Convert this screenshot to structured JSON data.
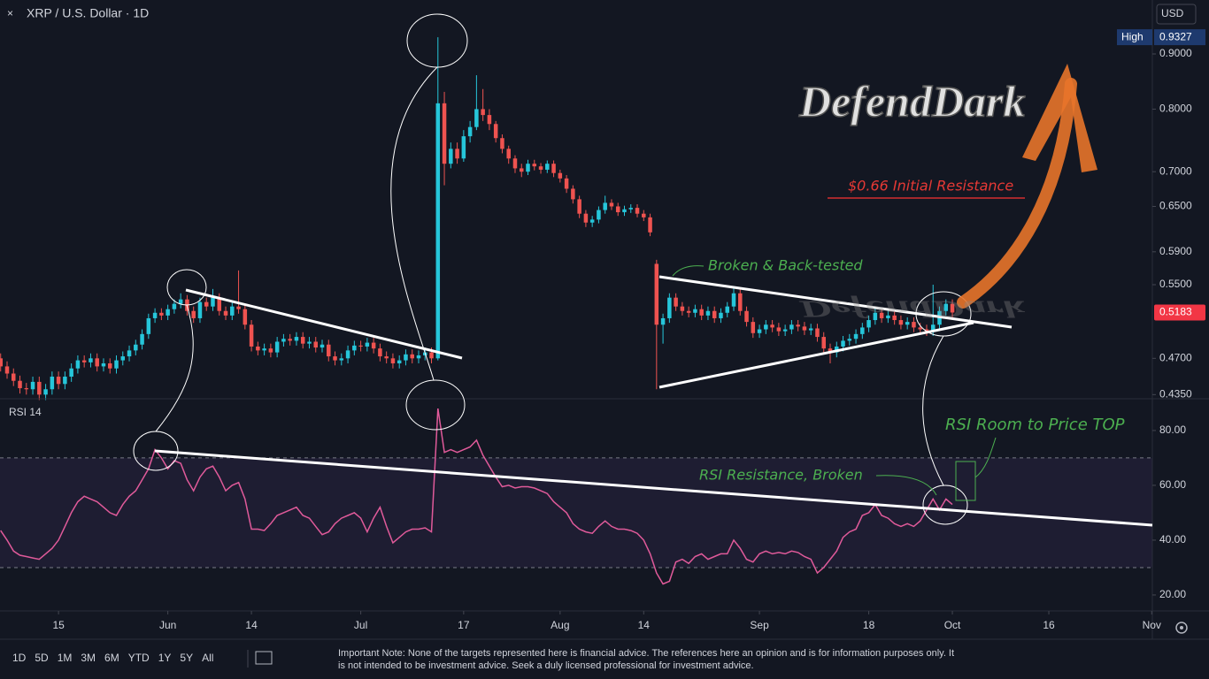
{
  "chart_data": [
    {
      "type": "candlestick",
      "title": "XRP / U.S. Dollar · 1D",
      "currency": "USD",
      "high_label": "High",
      "log_scale": true,
      "up_color": "#26c6da",
      "down_color": "#ef5350",
      "last_color": "#f23645",
      "xlim": [
        -0.1,
        179.1
      ],
      "ylim": [
        0.432,
        1.0098
      ],
      "yticks": [
        {
          "value": 0.9,
          "label": "0.9000"
        },
        {
          "value": 0.8,
          "label": "0.8000"
        },
        {
          "value": 0.7,
          "label": "0.7000"
        },
        {
          "value": 0.65,
          "label": "0.6500"
        },
        {
          "value": 0.59,
          "label": "0.5900"
        },
        {
          "value": 0.55,
          "label": "0.5500"
        },
        {
          "value": 0.47,
          "label": "0.4700"
        },
        {
          "value": 0.435,
          "label": "0.4350"
        }
      ],
      "annotations": [
        "DefendDark",
        "$0.66 Initial Resistance",
        "Broken & Back-tested",
        "RSI Room to Price TOP",
        "RSI Resistance, Broken"
      ],
      "open": [
        0.47,
        0.462,
        0.455,
        0.448,
        0.441,
        0.44,
        0.447,
        0.435,
        0.44,
        0.452,
        0.445,
        0.452,
        0.46,
        0.468,
        0.466,
        0.47,
        0.462,
        0.465,
        0.46,
        0.468,
        0.472,
        0.478,
        0.484,
        0.495,
        0.512,
        0.518,
        0.515,
        0.522,
        0.528,
        0.533,
        0.52,
        0.512,
        0.53,
        0.525,
        0.535,
        0.52,
        0.515,
        0.525,
        0.522,
        0.505,
        0.482,
        0.478,
        0.48,
        0.476,
        0.487,
        0.49,
        0.488,
        0.492,
        0.485,
        0.487,
        0.481,
        0.484,
        0.472,
        0.468,
        0.47,
        0.478,
        0.483,
        0.482,
        0.486,
        0.48,
        0.472,
        0.47,
        0.465,
        0.468,
        0.474,
        0.47,
        0.473,
        0.476,
        0.47,
        0.81,
        0.712,
        0.735,
        0.72,
        0.755,
        0.77,
        0.8,
        0.79,
        0.775,
        0.752,
        0.735,
        0.72,
        0.705,
        0.7,
        0.712,
        0.708,
        0.703,
        0.712,
        0.698,
        0.69,
        0.675,
        0.66,
        0.64,
        0.628,
        0.632,
        0.645,
        0.655,
        0.65,
        0.642,
        0.646,
        0.648,
        0.64,
        0.635,
        0.575,
        0.505,
        0.512,
        0.535,
        0.525,
        0.52,
        0.518,
        0.522,
        0.515,
        0.52,
        0.512,
        0.518,
        0.525,
        0.54,
        0.52,
        0.508,
        0.496,
        0.5,
        0.505,
        0.502,
        0.498,
        0.5,
        0.505,
        0.503,
        0.499,
        0.501,
        0.492,
        0.48,
        0.476,
        0.482,
        0.488,
        0.49,
        0.495,
        0.502,
        0.51,
        0.518,
        0.512,
        0.515,
        0.51,
        0.505,
        0.508,
        0.502,
        0.5,
        0.498,
        0.505,
        0.52,
        0.528
      ],
      "high": [
        0.475,
        0.467,
        0.46,
        0.453,
        0.446,
        0.452,
        0.452,
        0.445,
        0.457,
        0.457,
        0.457,
        0.465,
        0.473,
        0.473,
        0.475,
        0.475,
        0.47,
        0.47,
        0.473,
        0.477,
        0.483,
        0.489,
        0.5,
        0.517,
        0.523,
        0.523,
        0.527,
        0.533,
        0.54,
        0.538,
        0.525,
        0.535,
        0.535,
        0.545,
        0.54,
        0.525,
        0.53,
        0.567,
        0.527,
        0.51,
        0.487,
        0.485,
        0.485,
        0.492,
        0.495,
        0.495,
        0.497,
        0.497,
        0.492,
        0.492,
        0.489,
        0.489,
        0.477,
        0.475,
        0.483,
        0.488,
        0.488,
        0.491,
        0.491,
        0.485,
        0.477,
        0.475,
        0.473,
        0.479,
        0.479,
        0.478,
        0.481,
        0.481,
        0.9327,
        0.83,
        0.745,
        0.745,
        0.765,
        0.78,
        0.86,
        0.835,
        0.8,
        0.78,
        0.758,
        0.74,
        0.725,
        0.712,
        0.718,
        0.718,
        0.713,
        0.717,
        0.717,
        0.703,
        0.695,
        0.68,
        0.665,
        0.645,
        0.637,
        0.65,
        0.665,
        0.66,
        0.655,
        0.651,
        0.653,
        0.653,
        0.645,
        0.64,
        0.58,
        0.517,
        0.54,
        0.54,
        0.53,
        0.525,
        0.527,
        0.527,
        0.525,
        0.525,
        0.523,
        0.53,
        0.547,
        0.545,
        0.525,
        0.513,
        0.505,
        0.51,
        0.51,
        0.507,
        0.505,
        0.51,
        0.51,
        0.508,
        0.506,
        0.506,
        0.497,
        0.485,
        0.487,
        0.493,
        0.495,
        0.5,
        0.507,
        0.515,
        0.523,
        0.523,
        0.52,
        0.52,
        0.515,
        0.513,
        0.513,
        0.507,
        0.505,
        0.55,
        0.525,
        0.533,
        0.533
      ],
      "low": [
        0.457,
        0.45,
        0.443,
        0.436,
        0.435,
        0.435,
        0.43,
        0.43,
        0.435,
        0.44,
        0.44,
        0.447,
        0.455,
        0.461,
        0.461,
        0.457,
        0.457,
        0.455,
        0.455,
        0.463,
        0.467,
        0.473,
        0.479,
        0.49,
        0.507,
        0.51,
        0.51,
        0.517,
        0.523,
        0.515,
        0.507,
        0.507,
        0.52,
        0.52,
        0.515,
        0.51,
        0.51,
        0.517,
        0.5,
        0.477,
        0.473,
        0.473,
        0.471,
        0.471,
        0.482,
        0.483,
        0.483,
        0.48,
        0.48,
        0.476,
        0.476,
        0.467,
        0.463,
        0.463,
        0.465,
        0.473,
        0.477,
        0.477,
        0.475,
        0.467,
        0.465,
        0.46,
        0.46,
        0.463,
        0.465,
        0.465,
        0.468,
        0.465,
        0.468,
        0.68,
        0.705,
        0.712,
        0.715,
        0.745,
        0.765,
        0.78,
        0.765,
        0.745,
        0.728,
        0.712,
        0.698,
        0.692,
        0.695,
        0.702,
        0.697,
        0.698,
        0.692,
        0.684,
        0.669,
        0.654,
        0.634,
        0.622,
        0.622,
        0.627,
        0.64,
        0.645,
        0.637,
        0.637,
        0.641,
        0.635,
        0.63,
        0.61,
        0.44,
        0.485,
        0.507,
        0.52,
        0.515,
        0.513,
        0.513,
        0.51,
        0.51,
        0.507,
        0.507,
        0.513,
        0.52,
        0.515,
        0.503,
        0.491,
        0.491,
        0.495,
        0.497,
        0.493,
        0.493,
        0.495,
        0.498,
        0.494,
        0.494,
        0.487,
        0.475,
        0.465,
        0.471,
        0.477,
        0.483,
        0.485,
        0.49,
        0.497,
        0.505,
        0.507,
        0.507,
        0.505,
        0.5,
        0.5,
        0.497,
        0.495,
        0.493,
        0.493,
        0.5,
        0.515,
        0.513
      ],
      "close": [
        0.462,
        0.455,
        0.448,
        0.441,
        0.44,
        0.447,
        0.435,
        0.44,
        0.452,
        0.445,
        0.452,
        0.46,
        0.468,
        0.466,
        0.47,
        0.462,
        0.465,
        0.46,
        0.468,
        0.472,
        0.478,
        0.484,
        0.495,
        0.512,
        0.518,
        0.515,
        0.522,
        0.528,
        0.533,
        0.52,
        0.512,
        0.53,
        0.525,
        0.535,
        0.52,
        0.515,
        0.525,
        0.522,
        0.505,
        0.482,
        0.478,
        0.48,
        0.476,
        0.487,
        0.49,
        0.488,
        0.492,
        0.485,
        0.487,
        0.481,
        0.484,
        0.472,
        0.468,
        0.47,
        0.478,
        0.483,
        0.482,
        0.486,
        0.48,
        0.472,
        0.47,
        0.465,
        0.468,
        0.474,
        0.47,
        0.473,
        0.476,
        0.47,
        0.81,
        0.712,
        0.735,
        0.72,
        0.755,
        0.77,
        0.8,
        0.79,
        0.775,
        0.752,
        0.735,
        0.72,
        0.705,
        0.7,
        0.712,
        0.708,
        0.703,
        0.712,
        0.698,
        0.69,
        0.675,
        0.66,
        0.64,
        0.628,
        0.632,
        0.645,
        0.655,
        0.65,
        0.642,
        0.646,
        0.648,
        0.64,
        0.635,
        0.615,
        0.505,
        0.512,
        0.535,
        0.525,
        0.52,
        0.518,
        0.522,
        0.515,
        0.52,
        0.512,
        0.518,
        0.525,
        0.54,
        0.52,
        0.508,
        0.496,
        0.5,
        0.505,
        0.502,
        0.498,
        0.5,
        0.505,
        0.503,
        0.499,
        0.501,
        0.492,
        0.48,
        0.476,
        0.482,
        0.488,
        0.49,
        0.495,
        0.502,
        0.51,
        0.518,
        0.512,
        0.515,
        0.51,
        0.505,
        0.508,
        0.502,
        0.5,
        0.498,
        0.505,
        0.52,
        0.528,
        0.5183
      ]
    },
    {
      "type": "line",
      "title": "RSI 14",
      "color": "#e05a9a",
      "bands": [
        30,
        70
      ],
      "band_color": "#7e57c2",
      "xlim": [
        -0.1,
        179.1
      ],
      "ylim": [
        14.5,
        90.3
      ],
      "yticks": [
        {
          "value": 80,
          "label": "80.00"
        },
        {
          "value": 60,
          "label": "60.00"
        },
        {
          "value": 40,
          "label": "40.00"
        },
        {
          "value": 20,
          "label": "20.00"
        }
      ],
      "xticks": [
        {
          "value": 9,
          "label": "15"
        },
        {
          "value": 26,
          "label": "Jun"
        },
        {
          "value": 39,
          "label": "14"
        },
        {
          "value": 56,
          "label": "Jul"
        },
        {
          "value": 72,
          "label": "17"
        },
        {
          "value": 87,
          "label": "Aug"
        },
        {
          "value": 100,
          "label": "14"
        },
        {
          "value": 118,
          "label": "Sep"
        },
        {
          "value": 135,
          "label": "18"
        },
        {
          "value": 148,
          "label": "Oct"
        },
        {
          "value": 163,
          "label": "16"
        },
        {
          "value": 179,
          "label": "Nov"
        }
      ],
      "values": [
        43.5,
        40,
        36,
        34.5,
        34,
        33.5,
        33,
        35,
        37,
        40,
        45,
        50,
        54,
        56,
        55,
        54,
        52,
        50,
        49,
        53,
        56,
        58,
        62,
        66,
        73,
        70,
        66,
        69,
        68,
        62,
        58,
        63,
        66,
        67,
        63,
        58,
        60,
        61,
        55,
        44,
        44,
        43.5,
        46,
        49,
        50,
        51,
        52,
        49,
        48,
        45,
        42,
        43,
        46,
        48,
        49,
        50,
        48,
        43,
        48,
        52,
        45,
        39,
        41,
        43,
        44,
        44,
        44.5,
        43,
        88,
        72,
        73,
        72,
        73,
        74,
        76.5,
        71,
        67,
        63,
        59.5,
        60,
        59,
        59.5,
        59.5,
        59,
        58,
        57,
        54,
        52,
        50,
        46,
        44,
        43,
        42.5,
        45,
        47,
        45,
        44,
        44,
        43.5,
        42.5,
        40,
        35,
        28,
        24,
        25,
        32,
        33,
        31.5,
        34,
        35,
        33,
        34,
        35,
        35,
        40,
        37,
        33,
        32,
        35,
        36,
        35,
        35.5,
        35,
        36,
        35.5,
        34,
        33,
        28,
        30,
        33,
        36,
        41,
        43,
        44,
        49,
        50,
        53,
        49,
        48,
        46,
        45,
        46,
        45,
        47,
        51,
        55,
        51,
        55,
        53
      ]
    }
  ],
  "toolbar": {
    "ranges": [
      "1D",
      "5D",
      "1M",
      "3M",
      "6M",
      "YTD",
      "1Y",
      "5Y",
      "All"
    ]
  },
  "disclaimer": "Important Note: None of the targets represented here is financial advice. The references here an opinion and is for information purposes only. It is not intended to be investment advice. Seek a duly licensed professional for investment advice."
}
